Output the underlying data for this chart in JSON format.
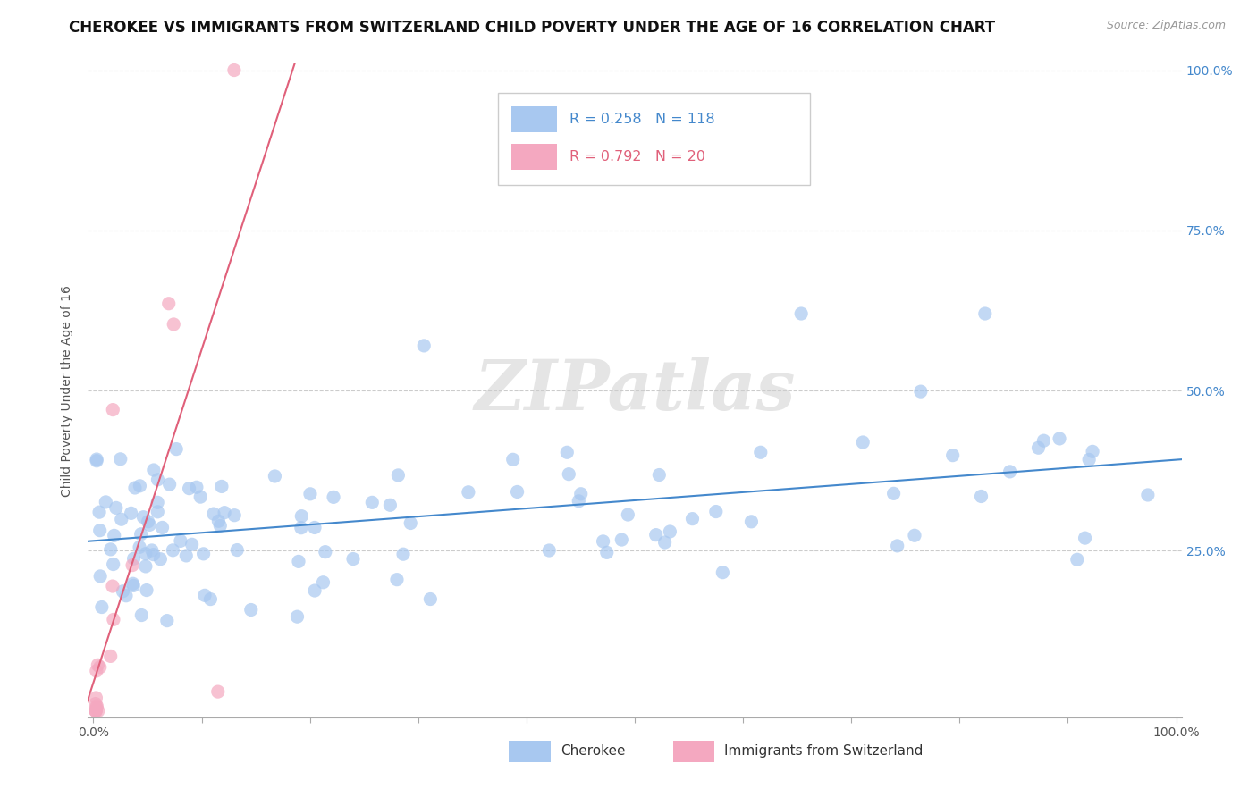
{
  "title": "CHEROKEE VS IMMIGRANTS FROM SWITZERLAND CHILD POVERTY UNDER THE AGE OF 16 CORRELATION CHART",
  "source": "Source: ZipAtlas.com",
  "ylabel": "Child Poverty Under the Age of 16",
  "cherokee_color": "#a8c8f0",
  "swiss_color": "#f4a8c0",
  "cherokee_line_color": "#4488cc",
  "swiss_line_color": "#e0607a",
  "background_color": "#ffffff",
  "grid_color": "#cccccc",
  "watermark": "ZIPatlas",
  "watermark_color": "#d8d8d8",
  "cherokee_R": "0.258",
  "cherokee_N": "118",
  "swiss_R": "0.792",
  "swiss_N": "20",
  "title_fontsize": 12,
  "axis_fontsize": 10,
  "tick_fontsize": 10,
  "right_tick_color": "#4488cc"
}
